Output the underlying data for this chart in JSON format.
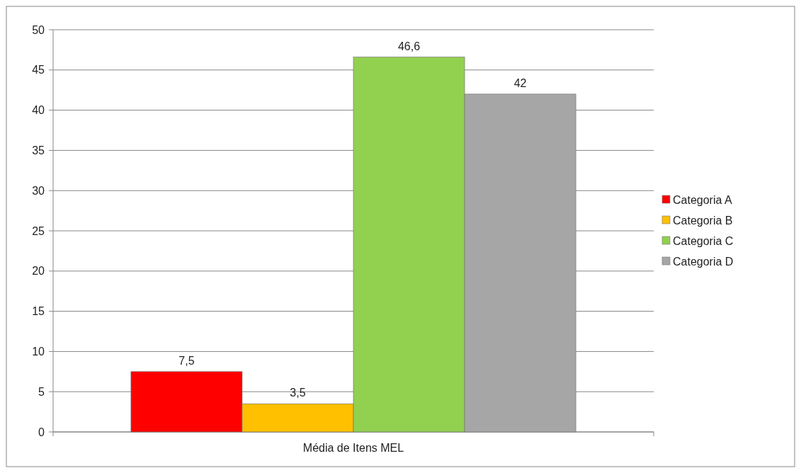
{
  "chart_data": {
    "type": "bar",
    "categories": [
      "Média de Itens MEL"
    ],
    "series": [
      {
        "name": "Categoria A",
        "color": "#ff0000",
        "values": [
          7.5
        ],
        "value_labels": [
          "7,5"
        ]
      },
      {
        "name": "Categoria B",
        "color": "#ffc000",
        "values": [
          3.5
        ],
        "value_labels": [
          "3,5"
        ]
      },
      {
        "name": "Categoria C",
        "color": "#92d050",
        "values": [
          46.6
        ],
        "value_labels": [
          "46,6"
        ]
      },
      {
        "name": "Categoria D",
        "color": "#a6a6a6",
        "values": [
          42
        ],
        "value_labels": [
          "42"
        ]
      }
    ],
    "ylim": [
      0,
      50
    ],
    "yticks": [
      0,
      5,
      10,
      15,
      20,
      25,
      30,
      35,
      40,
      45,
      50
    ],
    "grid": "y",
    "legend": "right"
  }
}
